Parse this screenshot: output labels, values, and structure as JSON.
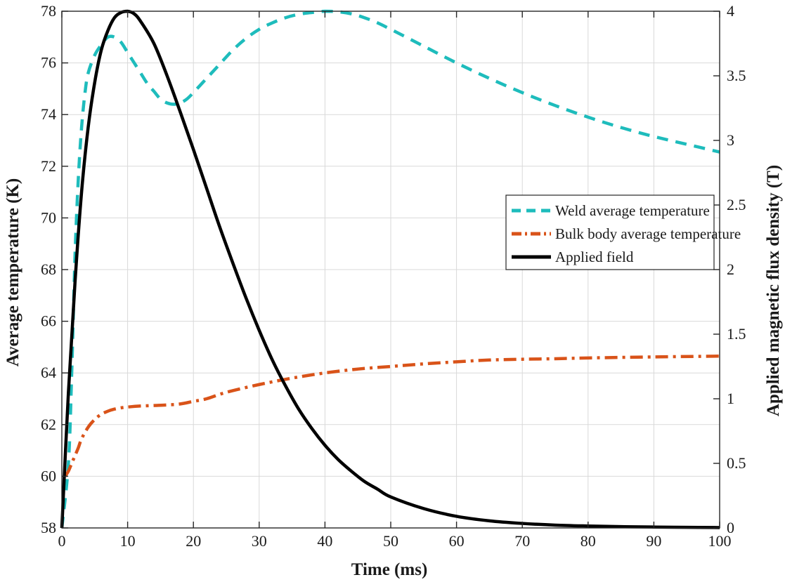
{
  "chart_data": {
    "type": "line",
    "xlabel": "Time (ms)",
    "ylabel_left": "Average temperature (K)",
    "ylabel_right": "Applied magnetic flux density (T)",
    "xlim": [
      0,
      100
    ],
    "ylim_left": [
      58,
      78
    ],
    "ylim_right": [
      0,
      4
    ],
    "x_ticks": [
      "0",
      "10",
      "20",
      "30",
      "40",
      "50",
      "60",
      "70",
      "80",
      "90",
      "100"
    ],
    "y_ticks_left": [
      "58",
      "60",
      "62",
      "64",
      "66",
      "68",
      "70",
      "72",
      "74",
      "76",
      "78"
    ],
    "y_ticks_right": [
      "0",
      "0.5",
      "1",
      "1.5",
      "2",
      "2.5",
      "3",
      "3.5",
      "4"
    ],
    "grid": true,
    "legend_position": "center-right",
    "series": [
      {
        "name": "Weld average temperature",
        "axis": "left",
        "style": "dashed",
        "color": "#1ebcbc",
        "x": [
          0,
          1,
          1.5,
          2,
          2.5,
          3,
          3.5,
          4,
          5,
          6,
          7,
          8,
          9,
          10,
          11,
          12,
          13,
          14,
          15,
          16,
          17,
          18,
          19,
          20,
          22,
          24,
          26,
          28,
          30,
          32,
          34,
          36,
          38,
          40,
          42,
          44,
          46,
          48,
          50,
          55,
          60,
          65,
          70,
          75,
          80,
          85,
          90,
          95,
          100
        ],
        "y": [
          58,
          60.5,
          64,
          68.5,
          71.5,
          73.5,
          74.8,
          75.6,
          76.3,
          76.7,
          77.0,
          77.0,
          76.8,
          76.4,
          76.0,
          75.6,
          75.2,
          74.9,
          74.6,
          74.45,
          74.4,
          74.45,
          74.6,
          74.85,
          75.4,
          75.95,
          76.5,
          76.95,
          77.3,
          77.55,
          77.75,
          77.88,
          77.95,
          78.0,
          77.98,
          77.9,
          77.75,
          77.55,
          77.3,
          76.65,
          76.0,
          75.4,
          74.85,
          74.35,
          73.9,
          73.5,
          73.15,
          72.85,
          72.55
        ]
      },
      {
        "name": "Bulk body average temperature",
        "axis": "left",
        "style": "dashdot",
        "color": "#d95319",
        "x": [
          0.5,
          1,
          1.5,
          2,
          2.5,
          3,
          4,
          5,
          6,
          7,
          8,
          9,
          10,
          12,
          14,
          16,
          18,
          20,
          22,
          25,
          30,
          35,
          40,
          45,
          50,
          55,
          60,
          65,
          70,
          75,
          80,
          90,
          100
        ],
        "y": [
          60.0,
          60.2,
          60.5,
          60.8,
          61.1,
          61.45,
          61.9,
          62.2,
          62.4,
          62.52,
          62.6,
          62.65,
          62.68,
          62.72,
          62.74,
          62.76,
          62.8,
          62.9,
          63.0,
          63.25,
          63.55,
          63.8,
          64.0,
          64.15,
          64.25,
          64.35,
          64.43,
          64.5,
          64.53,
          64.55,
          64.58,
          64.62,
          64.65
        ]
      },
      {
        "name": "Applied field",
        "axis": "right",
        "style": "solid",
        "color": "#000000",
        "x": [
          0,
          1,
          2,
          3,
          4,
          5,
          6,
          7,
          8,
          9,
          10,
          11,
          12,
          14,
          16,
          18,
          20,
          22,
          24,
          26,
          28,
          30,
          32,
          34,
          36,
          38,
          40,
          42,
          44,
          46,
          48,
          50,
          55,
          60,
          65,
          70,
          75,
          80,
          85,
          90,
          95,
          100
        ],
        "y": [
          0,
          1.05,
          1.9,
          2.6,
          3.1,
          3.45,
          3.7,
          3.85,
          3.95,
          3.99,
          4.0,
          3.98,
          3.92,
          3.75,
          3.5,
          3.22,
          2.93,
          2.63,
          2.33,
          2.05,
          1.78,
          1.53,
          1.3,
          1.1,
          0.92,
          0.77,
          0.64,
          0.53,
          0.44,
          0.36,
          0.3,
          0.24,
          0.15,
          0.09,
          0.055,
          0.035,
          0.022,
          0.015,
          0.01,
          0.007,
          0.005,
          0.003
        ]
      }
    ]
  }
}
